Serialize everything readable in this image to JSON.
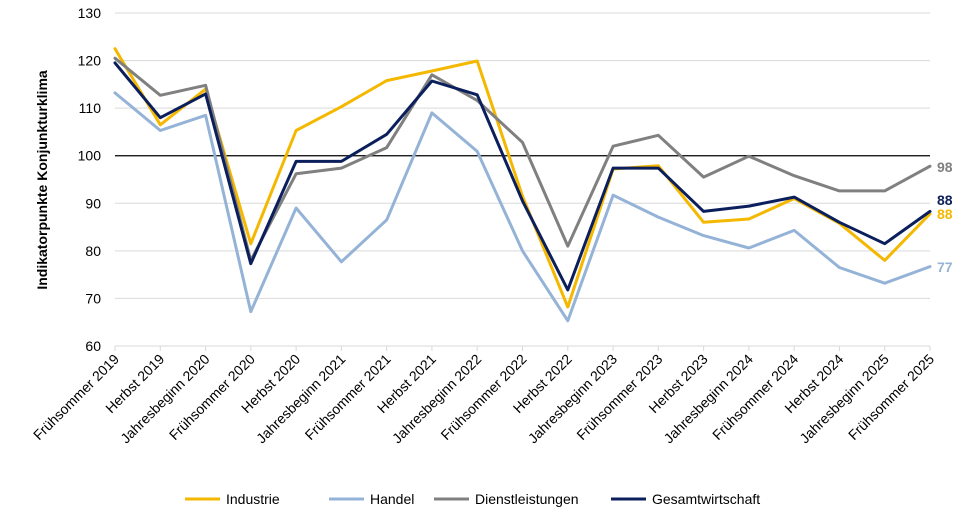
{
  "chart_data": {
    "type": "line",
    "title": "",
    "xlabel": "",
    "ylabel": "Indikatorpunkte Konjunkturklima",
    "ylim": [
      60,
      130
    ],
    "yticks": [
      60,
      70,
      80,
      90,
      100,
      110,
      120,
      130
    ],
    "reference_line": 100,
    "grid": "horizontal",
    "legend_position": "bottom",
    "categories": [
      "Frühsommer 2019",
      "Herbst 2019",
      "Jahresbeginn 2020",
      "Frühsommer 2020",
      "Herbst 2020",
      "Jahresbeginn 2021",
      "Frühsommer 2021",
      "Herbst 2021",
      "Jahresbeginn 2022",
      "Frühsommer 2022",
      "Herbst 2022",
      "Jahresbeginn 2023",
      "Frühsommer 2023",
      "Herbst 2023",
      "Jahresbeginn 2024",
      "Frühsommer 2024",
      "Herbst 2024",
      "Jahresbeginn 2025",
      "Frühsommer 2025"
    ],
    "series": [
      {
        "name": "Industrie",
        "color": "#F5B800",
        "end_label": "88",
        "values": [
          122.5,
          106.5,
          114,
          81.5,
          105.3,
          110.3,
          115.8,
          117.8,
          119.9,
          91.5,
          68.2,
          97.2,
          97.9,
          86.0,
          86.7,
          91.0,
          85.8,
          78.0,
          87.8
        ]
      },
      {
        "name": "Handel",
        "color": "#95B3D7",
        "end_label": "77",
        "values": [
          113.2,
          105.3,
          108.5,
          67.2,
          89.0,
          77.7,
          86.5,
          109.0,
          100.9,
          80.0,
          65.3,
          91.7,
          87.1,
          83.2,
          80.6,
          84.3,
          76.5,
          73.2,
          76.7
        ]
      },
      {
        "name": "Dienstleistungen",
        "color": "#808080",
        "end_label": "98",
        "values": [
          120.5,
          112.7,
          114.8,
          78.0,
          96.2,
          97.4,
          101.7,
          117.0,
          111.6,
          102.8,
          81.0,
          102.0,
          104.3,
          95.5,
          99.9,
          95.8,
          92.6,
          92.6,
          97.8
        ]
      },
      {
        "name": "Gesamtwirtschaft",
        "color": "#0B1F5C",
        "end_label": "88",
        "values": [
          119.5,
          108.0,
          113.0,
          77.3,
          98.8,
          98.8,
          104.5,
          115.7,
          112.8,
          90.5,
          71.8,
          97.4,
          97.4,
          88.3,
          89.4,
          91.3,
          86.0,
          81.5,
          88.3
        ]
      }
    ]
  }
}
